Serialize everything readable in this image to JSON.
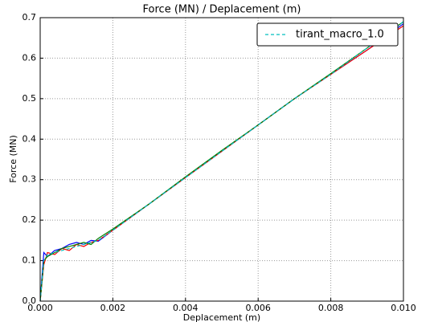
{
  "chart_data": {
    "type": "line",
    "title": "Force (MN) / Deplacement (m)",
    "xlabel": "Deplacement (m)",
    "ylabel": "Force (MN)",
    "x": [
      0,
      0.0001,
      0.0002,
      0.0004,
      0.0006,
      0.0008,
      0.001,
      0.0012,
      0.0014,
      0.0016,
      0.002,
      0.003,
      0.004,
      0.005,
      0.006,
      0.007,
      0.008,
      0.009,
      0.01
    ],
    "series": [
      {
        "color": "#0000ff",
        "dash": false,
        "values": [
          0,
          0.12,
          0.11,
          0.125,
          0.13,
          0.14,
          0.145,
          0.14,
          0.15,
          0.148,
          0.175,
          0.24,
          0.305,
          0.37,
          0.435,
          0.5,
          0.56,
          0.62,
          0.685
        ]
      },
      {
        "color": "#ff0000",
        "dash": false,
        "values": [
          0,
          0.09,
          0.12,
          0.115,
          0.13,
          0.125,
          0.14,
          0.135,
          0.145,
          0.15,
          0.175,
          0.24,
          0.305,
          0.37,
          0.435,
          0.5,
          0.56,
          0.62,
          0.68
        ]
      },
      {
        "color": "#008000",
        "dash": false,
        "values": [
          0,
          0.1,
          0.11,
          0.12,
          0.13,
          0.135,
          0.14,
          0.145,
          0.14,
          0.155,
          0.178,
          0.24,
          0.307,
          0.372,
          0.435,
          0.5,
          0.562,
          0.625,
          0.69
        ]
      },
      {
        "name": "tirant_macro_1.0",
        "color": "#00bfbf",
        "dash": true,
        "values": [
          0,
          0.1,
          0.115,
          0.12,
          0.125,
          0.13,
          0.135,
          0.14,
          0.145,
          0.15,
          0.175,
          0.24,
          0.305,
          0.37,
          0.435,
          0.5,
          0.56,
          0.625,
          0.69
        ]
      }
    ],
    "xlim": [
      0,
      0.01
    ],
    "xticks": [
      {
        "value": 0,
        "label": "0.000"
      },
      {
        "value": 0.002,
        "label": "0.002"
      },
      {
        "value": 0.004,
        "label": "0.004"
      },
      {
        "value": 0.006,
        "label": "0.006"
      },
      {
        "value": 0.008,
        "label": "0.008"
      },
      {
        "value": 0.01,
        "label": "0.010"
      }
    ],
    "ylim": [
      0,
      0.7
    ],
    "yticks": [
      {
        "value": 0,
        "label": "0.0"
      },
      0.1,
      0.2,
      0.3,
      0.4,
      0.5,
      0.6,
      0.7
    ],
    "grid": true,
    "legend": "upper right"
  }
}
